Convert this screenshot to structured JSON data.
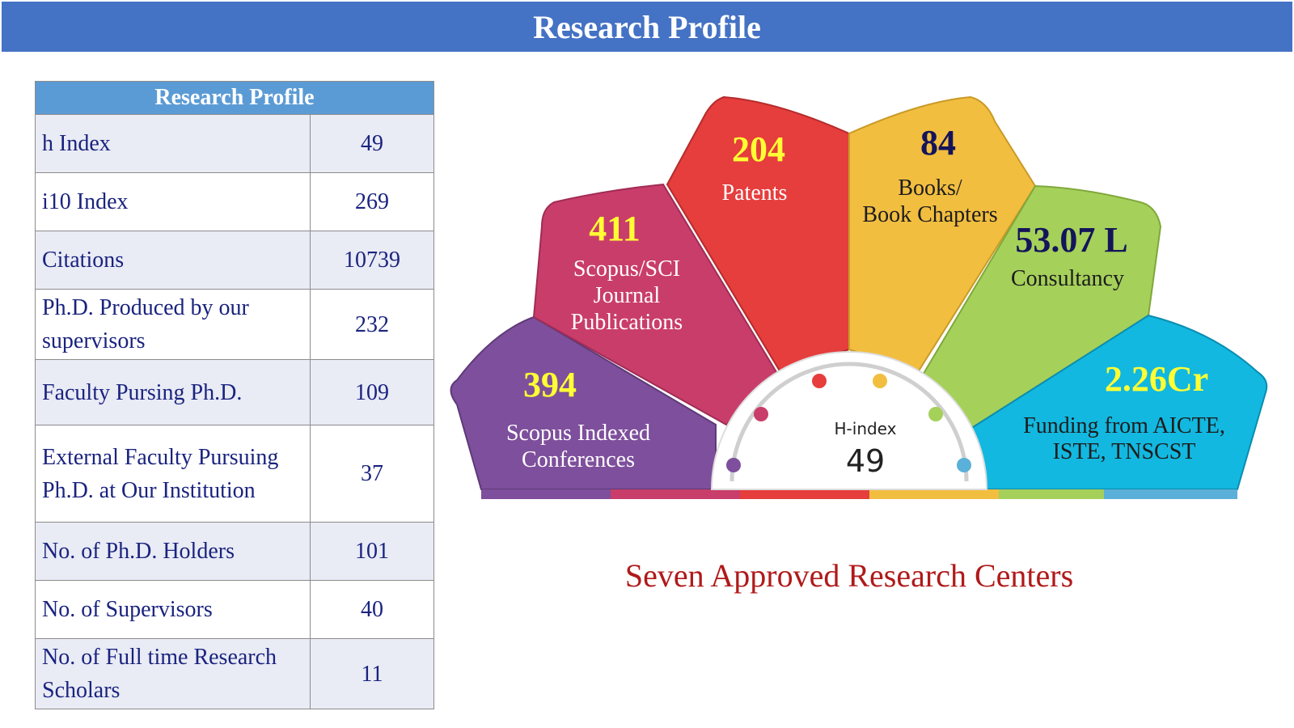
{
  "banner_title": "Research Profile",
  "table": {
    "header": "Research Profile",
    "rows": [
      {
        "label": "h Index",
        "value": "49"
      },
      {
        "label": "i10 Index",
        "value": "269"
      },
      {
        "label": "Citations",
        "value": "10739"
      },
      {
        "label": "Ph.D. Produced by our supervisors",
        "value": "232"
      },
      {
        "label": "Faculty Pursing Ph.D.",
        "value": "109"
      },
      {
        "label": "External Faculty Pursuing Ph.D. at Our Institution",
        "value": "37"
      },
      {
        "label": "No. of Ph.D.  Holders",
        "value": "101"
      },
      {
        "label": "No. of Supervisors",
        "value": "40"
      },
      {
        "label": "No. of Full time Research Scholars",
        "value": "11"
      }
    ]
  },
  "fan": {
    "petals": [
      {
        "value": "394",
        "label_lines": [
          "Scopus Indexed",
          "Conferences"
        ],
        "color": "#7e4f9c"
      },
      {
        "value": "411",
        "label_lines": [
          "Scopus/SCI",
          "Journal",
          "Publications"
        ],
        "color": "#c93d6b"
      },
      {
        "value": "204",
        "label_lines": [
          "Patents"
        ],
        "color": "#e63d3d"
      },
      {
        "value": "84",
        "label_lines": [
          "Books/",
          "Book Chapters"
        ],
        "color": "#f2be40"
      },
      {
        "value": "53.07 L",
        "label_lines": [
          "Consultancy"
        ],
        "color": "#a5d05a"
      },
      {
        "value": "2.26Cr",
        "label_lines": [
          "Funding from AICTE,",
          "ISTE, TNSCST"
        ],
        "color": "#12b8e0"
      }
    ],
    "gauge_label": "H-index",
    "gauge_value": "49"
  },
  "caption": "Seven Approved Research Centers"
}
